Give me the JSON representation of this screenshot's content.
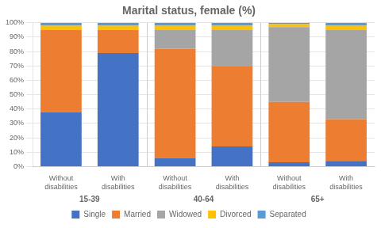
{
  "chart_data": {
    "type": "bar",
    "title": "Marital status, female (%)",
    "categories": [
      "Without\ndisabilities",
      "With\ndisabilities",
      "Without\ndisabilities",
      "With\ndisabilities",
      "Without\ndisabilities",
      "With\ndisabilities"
    ],
    "annotations": [
      "15-39",
      "40-64",
      "65+"
    ],
    "series": [
      {
        "name": "Single",
        "color": "#4472c4",
        "values": [
          38,
          79,
          6,
          14,
          3,
          4
        ]
      },
      {
        "name": "Married",
        "color": "#ed7d31",
        "values": [
          57,
          16,
          76,
          56,
          42,
          29
        ]
      },
      {
        "name": "Widowed",
        "color": "#a5a5a5",
        "values": [
          0,
          0,
          13,
          25,
          52,
          62
        ]
      },
      {
        "name": "Divorced",
        "color": "#ffc000",
        "values": [
          3,
          3,
          3,
          3,
          2,
          3
        ]
      },
      {
        "name": "Separated",
        "color": "#5b9bd5",
        "values": [
          2,
          2,
          2,
          2,
          1,
          2
        ]
      }
    ],
    "stacked": true,
    "ylim": [
      0,
      100
    ],
    "yticks": [
      {
        "value": 0,
        "label": "0%"
      },
      {
        "value": 10,
        "label": "10%"
      },
      {
        "value": 20,
        "label": "20%"
      },
      {
        "value": 30,
        "label": "30%"
      },
      {
        "value": 40,
        "label": "40%"
      },
      {
        "value": 50,
        "label": "50%"
      },
      {
        "value": 60,
        "label": "60%"
      },
      {
        "value": 70,
        "label": "70%"
      },
      {
        "value": 80,
        "label": "80%"
      },
      {
        "value": 90,
        "label": "90%"
      },
      {
        "value": 100,
        "label": "100%"
      }
    ],
    "grid": true,
    "legend": "bottom"
  }
}
